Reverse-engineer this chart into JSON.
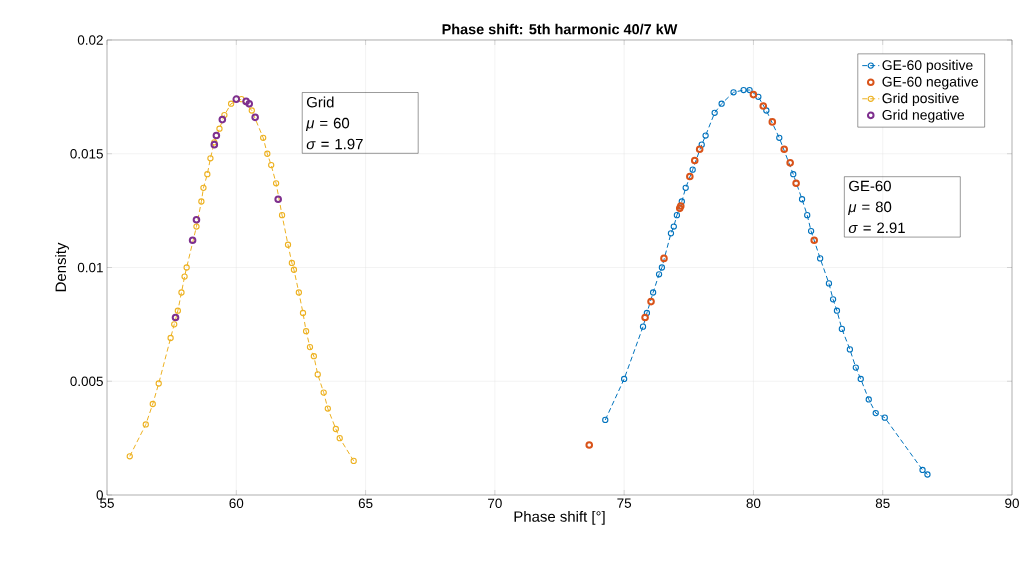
{
  "chart_data": {
    "type": "line",
    "title": "Phase shift: 5th harmonic 40/7 kW",
    "xlabel": "Phase shift [°]",
    "ylabel": "Density",
    "xlim": [
      55,
      90
    ],
    "ylim": [
      0,
      0.02
    ],
    "xticks": [
      55,
      60,
      65,
      70,
      75,
      80,
      85,
      90
    ],
    "yticks": [
      0,
      0.005,
      0.01,
      0.015,
      0.02
    ],
    "grid": true,
    "legend": "top right",
    "annotations": [
      "Grid",
      "*μ* = 60",
      "*σ* = 1.97",
      "GE-60",
      "*μ* = 80",
      "*σ* = 2.91"
    ],
    "series": [
      {
        "name": "GE-60 positive",
        "color": "#0072bd",
        "marker": "circle",
        "line_style": "dashed",
        "x": [
          74.27,
          75.0,
          75.73,
          75.88,
          76.12,
          76.35,
          76.46,
          76.81,
          76.92,
          77.04,
          77.23,
          77.38,
          77.65,
          78.0,
          78.15,
          78.5,
          78.77,
          79.23,
          79.62,
          79.85,
          80.19,
          80.5,
          81.0,
          81.54,
          81.88,
          82.08,
          82.23,
          82.58,
          82.92,
          83.08,
          83.23,
          83.42,
          83.73,
          83.96,
          84.15,
          84.46,
          84.73,
          85.08,
          86.54,
          86.73
        ],
        "values": [
          0.0033,
          0.0051,
          0.0074,
          0.008,
          0.0089,
          0.0097,
          0.01,
          0.0115,
          0.0118,
          0.0123,
          0.0129,
          0.0135,
          0.0143,
          0.0154,
          0.0158,
          0.0168,
          0.0172,
          0.0177,
          0.0178,
          0.0178,
          0.0175,
          0.0169,
          0.0157,
          0.0141,
          0.013,
          0.0123,
          0.0116,
          0.0104,
          0.0093,
          0.0086,
          0.0081,
          0.0073,
          0.0064,
          0.0056,
          0.0051,
          0.0042,
          0.0036,
          0.0034,
          0.0011,
          0.0009
        ]
      },
      {
        "name": "GE-60 negative",
        "type": "scatter",
        "color": "#d95319",
        "marker": "circle",
        "x": [
          73.65,
          75.81,
          76.04,
          76.54,
          77.15,
          77.19,
          77.54,
          77.73,
          77.92,
          80.0,
          80.38,
          80.73,
          81.19,
          81.42,
          81.65,
          82.35
        ],
        "values": [
          0.0022,
          0.0078,
          0.0085,
          0.0104,
          0.0126,
          0.0127,
          0.014,
          0.0147,
          0.0152,
          0.0176,
          0.0171,
          0.0164,
          0.0152,
          0.0146,
          0.0137,
          0.0112
        ]
      },
      {
        "name": "Grid positive",
        "color": "#edb120",
        "marker": "circle",
        "line_style": "dashed",
        "x": [
          55.88,
          56.5,
          56.77,
          57.0,
          57.46,
          57.6,
          57.74,
          57.88,
          58.0,
          58.08,
          58.46,
          58.65,
          58.73,
          58.88,
          59.0,
          59.15,
          59.35,
          59.54,
          59.8,
          60.2,
          60.6,
          61.04,
          61.2,
          61.35,
          61.54,
          61.77,
          62.0,
          62.15,
          62.23,
          62.42,
          62.58,
          62.7,
          62.85,
          63.0,
          63.15,
          63.38,
          63.54,
          63.85,
          64.0,
          64.54
        ],
        "values": [
          0.0017,
          0.0031,
          0.004,
          0.0049,
          0.0069,
          0.0075,
          0.0081,
          0.0089,
          0.0096,
          0.01,
          0.0118,
          0.0129,
          0.0135,
          0.0141,
          0.0148,
          0.0155,
          0.0161,
          0.0167,
          0.0172,
          0.0174,
          0.0169,
          0.0157,
          0.015,
          0.0145,
          0.0137,
          0.0123,
          0.011,
          0.0102,
          0.0099,
          0.0089,
          0.008,
          0.0072,
          0.0065,
          0.0061,
          0.0053,
          0.0045,
          0.0038,
          0.0029,
          0.0025,
          0.0015
        ]
      },
      {
        "name": "Grid negative",
        "type": "scatter",
        "color": "#7e2f8e",
        "marker": "circle",
        "x": [
          57.65,
          58.31,
          58.46,
          59.15,
          59.23,
          59.46,
          60.0,
          60.38,
          60.5,
          60.73,
          61.62
        ],
        "values": [
          0.0078,
          0.0112,
          0.0121,
          0.0154,
          0.0158,
          0.0165,
          0.0174,
          0.0173,
          0.0172,
          0.0166,
          0.013
        ]
      }
    ]
  }
}
